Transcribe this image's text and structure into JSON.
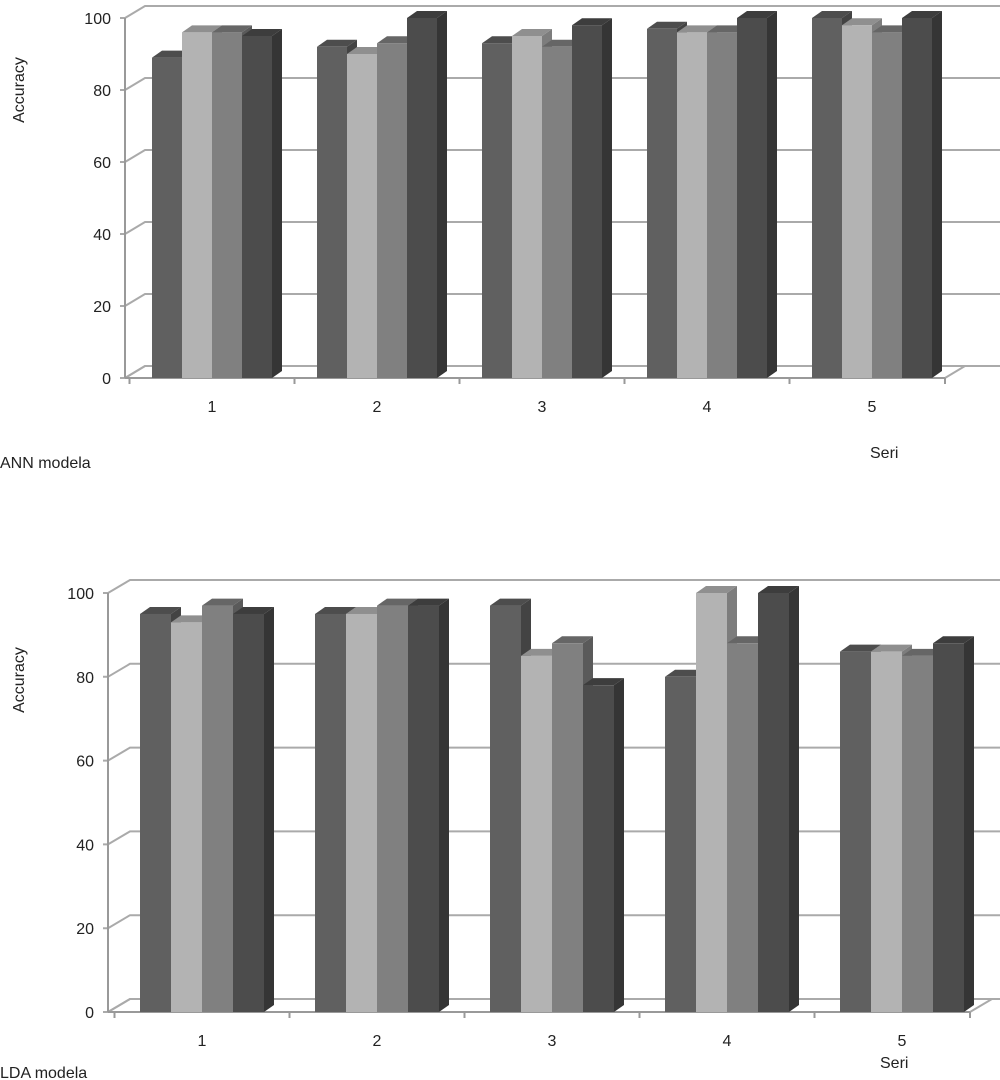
{
  "chart_data": [
    {
      "type": "bar",
      "title": "",
      "xlabel": "Seri",
      "ylabel": "Accuracy",
      "caption": "ANN modela",
      "categories": [
        "1",
        "2",
        "3",
        "4",
        "5"
      ],
      "ylim": [
        0,
        100
      ],
      "yticks": [
        "0",
        "20",
        "40",
        "60",
        "80",
        "100"
      ],
      "grid": true,
      "style": "3d-clustered-column",
      "series": [
        {
          "values": [
            89,
            92,
            93,
            97,
            100
          ],
          "color": "#606060"
        },
        {
          "values": [
            96,
            90,
            95,
            96,
            98
          ],
          "color": "#b3b3b3"
        },
        {
          "values": [
            96,
            93,
            92,
            96,
            96
          ],
          "color": "#808080"
        },
        {
          "values": [
            95,
            100,
            98,
            100,
            100
          ],
          "color": "#4c4c4c"
        }
      ]
    },
    {
      "type": "bar",
      "title": "",
      "xlabel": "Seri",
      "ylabel": "Accuracy",
      "caption": "LDA modela",
      "categories": [
        "1",
        "2",
        "3",
        "4",
        "5"
      ],
      "ylim": [
        0,
        100
      ],
      "yticks": [
        "0",
        "20",
        "40",
        "60",
        "80",
        "100"
      ],
      "grid": true,
      "style": "3d-clustered-column",
      "series": [
        {
          "values": [
            95,
            95,
            97,
            80,
            86
          ],
          "color": "#606060"
        },
        {
          "values": [
            93,
            95,
            85,
            100,
            86
          ],
          "color": "#b3b3b3"
        },
        {
          "values": [
            97,
            97,
            88,
            88,
            85
          ],
          "color": "#808080"
        },
        {
          "values": [
            95,
            97,
            78,
            100,
            88
          ],
          "color": "#4c4c4c"
        }
      ]
    }
  ]
}
